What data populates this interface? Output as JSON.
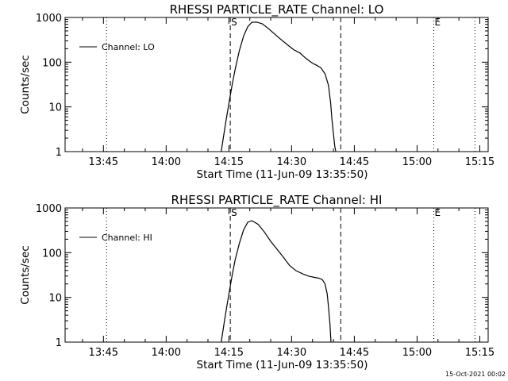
{
  "footer": {
    "timestamp": "15-Oct-2021 00:02"
  },
  "chart_data": [
    {
      "type": "line",
      "title": "RHESSI PARTICLE_RATE Channel: LO",
      "xlabel": "Start Time (11-Jun-09 13:35:50)",
      "ylabel": "Counts/sec",
      "y_scale": "log",
      "ylim": [
        1,
        1000
      ],
      "xlim": [
        "13:35:50",
        "15:17:00"
      ],
      "x_ticks": [
        "13:45",
        "14:00",
        "14:15",
        "14:30",
        "14:45",
        "15:00",
        "15:15"
      ],
      "y_ticks": [
        "1",
        "10",
        "100",
        "1000"
      ],
      "legend": {
        "position": "top-left",
        "entries": [
          "Channel: LO"
        ]
      },
      "markers": [
        {
          "label": "",
          "x": "13:45:45",
          "style": "dotted"
        },
        {
          "label": "S",
          "x": "14:15:20",
          "style": "dashed"
        },
        {
          "label": "",
          "x": "14:41:45",
          "style": "dashed"
        },
        {
          "label": "E",
          "x": "15:04:00",
          "style": "dotted"
        },
        {
          "label": "",
          "x": "15:13:50",
          "style": "dotted"
        }
      ],
      "series": [
        {
          "name": "Channel: LO",
          "x": [
            "14:13:10",
            "14:13:40",
            "14:14:20",
            "14:15:00",
            "14:15:45",
            "14:16:30",
            "14:17:30",
            "14:18:30",
            "14:19:30",
            "14:20:30",
            "14:21:40",
            "14:23:00",
            "14:24:30",
            "14:26:00",
            "14:27:30",
            "14:29:00",
            "14:30:30",
            "14:32:00",
            "14:33:30",
            "14:35:00",
            "14:36:00",
            "14:37:00",
            "14:38:00",
            "14:38:50",
            "14:39:20",
            "14:39:40",
            "14:40:00",
            "14:40:20",
            "14:40:35"
          ],
          "values": [
            1,
            2,
            5,
            12,
            30,
            70,
            180,
            380,
            620,
            780,
            790,
            720,
            560,
            420,
            320,
            245,
            190,
            160,
            120,
            95,
            85,
            75,
            55,
            30,
            12,
            5,
            2.5,
            1.3,
            1
          ]
        }
      ]
    },
    {
      "type": "line",
      "title": "RHESSI PARTICLE_RATE Channel: HI",
      "xlabel": "Start Time (11-Jun-09 13:35:50)",
      "ylabel": "Counts/sec",
      "y_scale": "log",
      "ylim": [
        1,
        1000
      ],
      "xlim": [
        "13:35:50",
        "15:17:00"
      ],
      "x_ticks": [
        "13:45",
        "14:00",
        "14:15",
        "14:30",
        "14:45",
        "15:00",
        "15:15"
      ],
      "y_ticks": [
        "1",
        "10",
        "100",
        "1000"
      ],
      "legend": {
        "position": "top-left",
        "entries": [
          "Channel: HI"
        ]
      },
      "markers": [
        {
          "label": "",
          "x": "13:45:45",
          "style": "dotted"
        },
        {
          "label": "S",
          "x": "14:15:20",
          "style": "dashed"
        },
        {
          "label": "",
          "x": "14:41:45",
          "style": "dashed"
        },
        {
          "label": "E",
          "x": "15:04:00",
          "style": "dotted"
        },
        {
          "label": "",
          "x": "15:13:50",
          "style": "dotted"
        }
      ],
      "series": [
        {
          "name": "Channel: HI",
          "x": [
            "14:13:10",
            "14:13:40",
            "14:14:20",
            "14:15:00",
            "14:15:45",
            "14:16:30",
            "14:17:30",
            "14:18:30",
            "14:19:30",
            "14:20:30",
            "14:22:00",
            "14:23:30",
            "14:25:00",
            "14:26:30",
            "14:28:00",
            "14:29:30",
            "14:31:00",
            "14:32:30",
            "14:34:00",
            "14:35:30",
            "14:36:30",
            "14:37:20",
            "14:38:00",
            "14:38:30",
            "14:38:50",
            "14:39:10",
            "14:39:25"
          ],
          "values": [
            1,
            2,
            5,
            12,
            30,
            70,
            160,
            320,
            480,
            520,
            430,
            290,
            180,
            120,
            80,
            52,
            40,
            34,
            30,
            28,
            27,
            25,
            20,
            12,
            6,
            2.5,
            1
          ]
        }
      ]
    }
  ]
}
